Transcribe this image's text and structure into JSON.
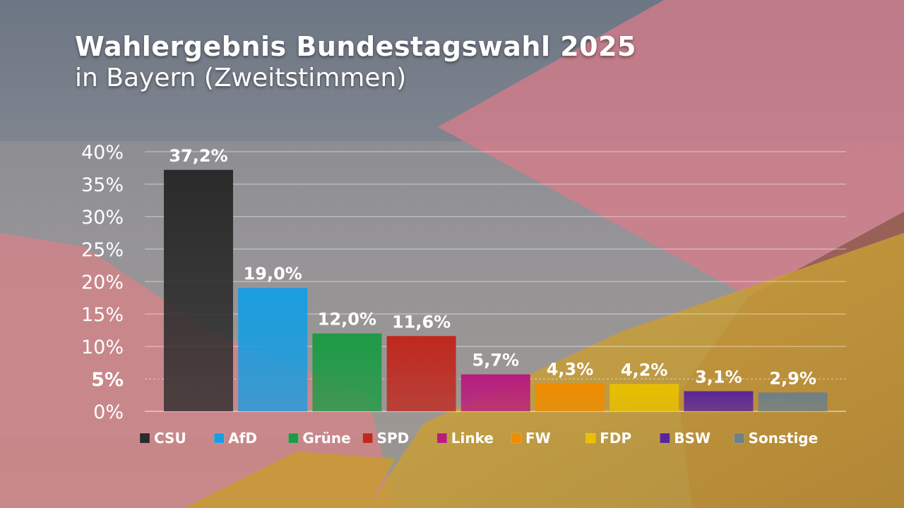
{
  "title": "Wahlergebnis Bundestagswahl 2025",
  "subtitle": "in Bayern (Zweitstimmen)",
  "chart_data": {
    "type": "bar",
    "title": "Wahlergebnis Bundestagswahl 2025",
    "subtitle": "in Bayern (Zweitstimmen)",
    "xlabel": "",
    "ylabel": "",
    "ylim": [
      0,
      40
    ],
    "yticks": [
      0,
      5,
      10,
      15,
      20,
      25,
      30,
      35,
      40
    ],
    "ytick_labels": [
      "0%",
      "5%",
      "10%",
      "15%",
      "20%",
      "25%",
      "30%",
      "35%",
      "40%"
    ],
    "grid": true,
    "legend": "bottom",
    "categories": [
      "CSU",
      "AfD",
      "Grüne",
      "SPD",
      "Linke",
      "FW",
      "FDP",
      "BSW",
      "Sonstige"
    ],
    "values": [
      37.2,
      19.0,
      12.0,
      11.6,
      5.7,
      4.3,
      4.2,
      3.1,
      2.9
    ],
    "value_labels": [
      "37,2%",
      "19,0%",
      "12,0%",
      "11,6%",
      "5,7%",
      "4,3%",
      "4,2%",
      "3,1%",
      "2,9%"
    ],
    "colors": [
      "#2b2b2b",
      "#1a9de0",
      "#1e9a45",
      "#c0281e",
      "#b81c7d",
      "#ef8c00",
      "#e8c000",
      "#5a259a",
      "#6e8088"
    ]
  }
}
